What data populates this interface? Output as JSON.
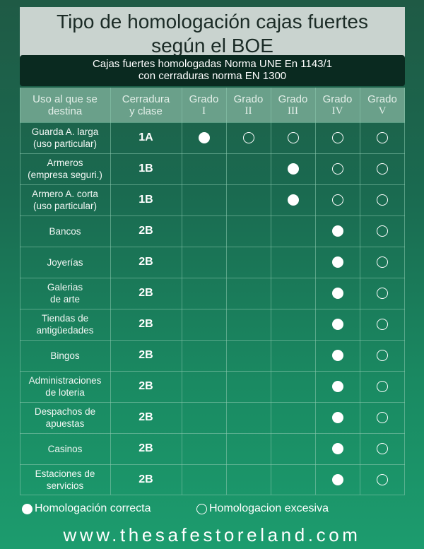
{
  "title": {
    "line1": "Tipo de homologación cajas fuertes",
    "line2": "según el BOE"
  },
  "subtitle": {
    "line1": "Cajas fuertes homologadas Norma UNE En 1143/1",
    "line2": "con cerraduras norma EN 1300"
  },
  "headers": {
    "use": [
      "Uso al que se",
      "destina"
    ],
    "lock": [
      "Cerradura",
      "y clase"
    ],
    "grades": [
      [
        "Grado",
        "I"
      ],
      [
        "Grado",
        "II"
      ],
      [
        "Grado",
        "III"
      ],
      [
        "Grado",
        "IV"
      ],
      [
        "Grado",
        "V"
      ]
    ]
  },
  "rows": [
    {
      "use": [
        "Guarda A. larga",
        "(uso particular)"
      ],
      "lock": "1A",
      "grades": [
        "filled",
        "empty",
        "empty",
        "empty",
        "empty"
      ]
    },
    {
      "use": [
        "Armeros",
        "(empresa seguri.)"
      ],
      "lock": "1B",
      "grades": [
        "",
        "",
        "filled",
        "empty",
        "empty"
      ]
    },
    {
      "use": [
        "Armero A. corta",
        "(uso particular)"
      ],
      "lock": "1B",
      "grades": [
        "",
        "",
        "filled",
        "empty",
        "empty"
      ]
    },
    {
      "use": [
        "Bancos"
      ],
      "lock": "2B",
      "grades": [
        "",
        "",
        "",
        "filled",
        "empty"
      ]
    },
    {
      "use": [
        "Joyerías"
      ],
      "lock": "2B",
      "grades": [
        "",
        "",
        "",
        "filled",
        "empty"
      ]
    },
    {
      "use": [
        "Galerias",
        "de arte"
      ],
      "lock": "2B",
      "grades": [
        "",
        "",
        "",
        "filled",
        "empty"
      ]
    },
    {
      "use": [
        "Tiendas de",
        "antigüedades"
      ],
      "lock": "2B",
      "grades": [
        "",
        "",
        "",
        "filled",
        "empty"
      ]
    },
    {
      "use": [
        "Bingos"
      ],
      "lock": "2B",
      "grades": [
        "",
        "",
        "",
        "filled",
        "empty"
      ]
    },
    {
      "use": [
        "Administraciones",
        "de loteria"
      ],
      "lock": "2B",
      "grades": [
        "",
        "",
        "",
        "filled",
        "empty"
      ]
    },
    {
      "use": [
        "Despachos de",
        "apuestas"
      ],
      "lock": "2B",
      "grades": [
        "",
        "",
        "",
        "filled",
        "empty"
      ]
    },
    {
      "use": [
        "Casinos"
      ],
      "lock": "2B",
      "grades": [
        "",
        "",
        "",
        "filled",
        "empty"
      ]
    },
    {
      "use": [
        "Estaciones de",
        "servicios"
      ],
      "lock": "2B",
      "grades": [
        "",
        "",
        "",
        "filled",
        "empty"
      ]
    }
  ],
  "legend": {
    "filled_label": "Homologación correcta",
    "empty_label": "Homologacion excesiva"
  },
  "footer": "www.thesafestoreland.com",
  "colors": {
    "title_bg": "#c9d3cf",
    "subtitle_bg": "#0a2a20",
    "header_bg": "#6aa08a"
  }
}
